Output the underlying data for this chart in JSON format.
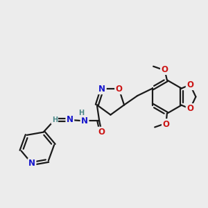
{
  "bg_color": "#ececec",
  "bond_color": "#1a1a1a",
  "bond_width": 1.6,
  "atom_colors": {
    "N": "#1515cc",
    "O": "#cc1515",
    "C": "#1a1a1a",
    "H": "#4a8888"
  },
  "font_size_atom": 8.5,
  "font_size_small": 7.0
}
